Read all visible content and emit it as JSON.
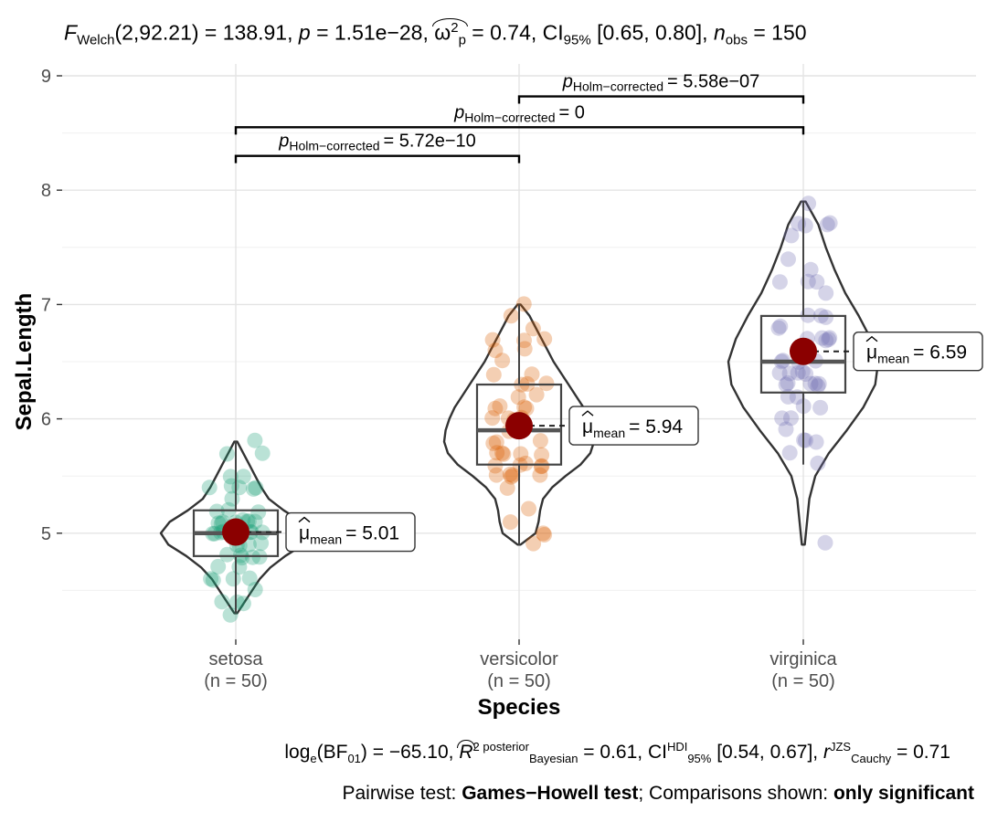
{
  "subtitle": {
    "stat_symbol": "F",
    "stat_sub": "Welch",
    "df": "(2,92.21)",
    "stat_value": "= 138.91,",
    "p_symbol": "p",
    "p_value": "= 1.51e−28,",
    "effect_symbol": "ω",
    "effect_sup": "2",
    "effect_sub": "p",
    "effect_value": "= 0.74,",
    "ci_label": "CI",
    "ci_sub": "95%",
    "ci_value": "[0.65, 0.80],",
    "n_symbol": "n",
    "n_sub": "obs",
    "n_value": "= 150"
  },
  "caption": {
    "bf_prefix": "log",
    "bf_sub": "e",
    "bf_mid": "(BF",
    "bf_mid_sub": "01",
    "bf_value": ") = −65.10,",
    "r2_symbol": "R",
    "r2_sup": "2",
    "r2_sup_label": "posterior",
    "r2_sub": "Bayesian",
    "r2_value": "= 0.61,",
    "ci_label": "CI",
    "ci_sup": "HDI",
    "ci_sub": "95%",
    "ci_value": "[0.54, 0.67],",
    "r_symbol": "r",
    "r_sup": "JZS",
    "r_sub": "Cauchy",
    "r_value": "= 0.71",
    "pairwise_prefix": "Pairwise test: ",
    "pairwise_test": "Games−Howell test",
    "comparisons_prefix": "; Comparisons shown: ",
    "comparisons_value": "only significant"
  },
  "chart_data": {
    "type": "violin-box-scatter",
    "xlabel": "Species",
    "ylabel": "Sepal.Length",
    "ylim": [
      4.05,
      9.05
    ],
    "yticks": [
      5,
      6,
      7,
      8,
      9
    ],
    "grid": true,
    "categories": [
      {
        "name": "setosa",
        "n_label": "(n = 50)",
        "color": "#1b9e77",
        "mean": 5.01,
        "mean_label": "= 5.01",
        "mean_symbol": "μ",
        "mean_sub": "mean",
        "q1": 4.8,
        "median": 5.0,
        "q3": 5.2,
        "whisker_low": 4.3,
        "whisker_high": 5.8,
        "violin": [
          [
            4.3,
            0.02
          ],
          [
            4.4,
            0.12
          ],
          [
            4.5,
            0.22
          ],
          [
            4.6,
            0.32
          ],
          [
            4.7,
            0.46
          ],
          [
            4.8,
            0.66
          ],
          [
            4.9,
            0.9
          ],
          [
            5.0,
            1.0
          ],
          [
            5.1,
            0.88
          ],
          [
            5.2,
            0.64
          ],
          [
            5.3,
            0.44
          ],
          [
            5.4,
            0.34
          ],
          [
            5.5,
            0.26
          ],
          [
            5.6,
            0.18
          ],
          [
            5.7,
            0.1
          ],
          [
            5.8,
            0.02
          ]
        ],
        "points": [
          5.1,
          4.9,
          4.7,
          4.6,
          5.0,
          5.4,
          4.6,
          5.0,
          4.4,
          4.9,
          5.4,
          4.8,
          4.8,
          4.3,
          5.8,
          5.7,
          5.4,
          5.1,
          5.7,
          5.1,
          5.4,
          5.1,
          4.6,
          5.1,
          4.8,
          5.0,
          5.0,
          5.2,
          5.2,
          4.7,
          4.8,
          5.4,
          5.2,
          5.5,
          4.9,
          5.0,
          5.5,
          4.9,
          4.4,
          5.1,
          5.0,
          4.5,
          4.4,
          5.0,
          5.1,
          4.8,
          5.1,
          4.6,
          5.3,
          5.0
        ]
      },
      {
        "name": "versicolor",
        "n_label": "(n = 50)",
        "color": "#d95f02",
        "mean": 5.94,
        "mean_label": "= 5.94",
        "mean_symbol": "μ",
        "mean_sub": "mean",
        "q1": 5.6,
        "median": 5.9,
        "q3": 6.3,
        "whisker_low": 4.9,
        "whisker_high": 7.0,
        "violin": [
          [
            4.9,
            0.02
          ],
          [
            5.0,
            0.22
          ],
          [
            5.1,
            0.26
          ],
          [
            5.2,
            0.28
          ],
          [
            5.3,
            0.32
          ],
          [
            5.4,
            0.44
          ],
          [
            5.5,
            0.62
          ],
          [
            5.6,
            0.82
          ],
          [
            5.7,
            0.95
          ],
          [
            5.8,
            1.0
          ],
          [
            5.9,
            0.98
          ],
          [
            6.0,
            0.93
          ],
          [
            6.1,
            0.86
          ],
          [
            6.2,
            0.76
          ],
          [
            6.3,
            0.66
          ],
          [
            6.4,
            0.56
          ],
          [
            6.5,
            0.46
          ],
          [
            6.6,
            0.38
          ],
          [
            6.7,
            0.3
          ],
          [
            6.8,
            0.22
          ],
          [
            6.9,
            0.14
          ],
          [
            7.0,
            0.02
          ]
        ],
        "points": [
          7.0,
          6.4,
          6.9,
          5.5,
          6.5,
          5.7,
          6.3,
          4.9,
          6.6,
          5.2,
          5.0,
          5.9,
          6.0,
          6.1,
          5.6,
          6.7,
          5.6,
          5.8,
          6.2,
          5.6,
          5.9,
          6.1,
          6.3,
          6.1,
          6.4,
          6.6,
          6.8,
          6.7,
          6.0,
          5.7,
          5.5,
          5.5,
          5.8,
          6.0,
          5.4,
          6.0,
          6.7,
          6.3,
          5.6,
          5.5,
          5.5,
          6.1,
          5.8,
          5.0,
          5.6,
          5.7,
          5.7,
          6.2,
          5.1,
          5.7
        ]
      },
      {
        "name": "virginica",
        "n_label": "(n = 50)",
        "color": "#7570b3",
        "mean": 6.59,
        "mean_label": "= 6.59",
        "mean_symbol": "μ",
        "mean_sub": "mean",
        "q1": 6.23,
        "median": 6.5,
        "q3": 6.9,
        "whisker_low": 5.6,
        "whisker_high": 7.9,
        "violin": [
          [
            4.9,
            0.02
          ],
          [
            5.1,
            0.05
          ],
          [
            5.3,
            0.08
          ],
          [
            5.5,
            0.16
          ],
          [
            5.7,
            0.34
          ],
          [
            5.9,
            0.58
          ],
          [
            6.1,
            0.8
          ],
          [
            6.3,
            0.96
          ],
          [
            6.5,
            1.0
          ],
          [
            6.7,
            0.9
          ],
          [
            6.9,
            0.74
          ],
          [
            7.1,
            0.56
          ],
          [
            7.3,
            0.42
          ],
          [
            7.5,
            0.3
          ],
          [
            7.7,
            0.2
          ],
          [
            7.9,
            0.03
          ]
        ],
        "points": [
          6.3,
          5.8,
          7.1,
          6.3,
          6.5,
          7.6,
          4.9,
          7.3,
          6.7,
          7.2,
          6.5,
          6.4,
          6.8,
          5.7,
          5.8,
          6.4,
          6.5,
          7.7,
          7.7,
          6.0,
          6.9,
          5.6,
          7.7,
          6.3,
          6.7,
          7.2,
          6.2,
          6.1,
          6.4,
          7.2,
          7.4,
          7.9,
          6.4,
          6.3,
          6.1,
          7.7,
          6.3,
          6.4,
          6.0,
          6.9,
          6.7,
          6.9,
          5.8,
          6.8,
          6.7,
          6.7,
          6.3,
          6.5,
          6.2,
          5.9
        ]
      }
    ],
    "comparisons": [
      {
        "from": 0,
        "to": 1,
        "label_symbol": "p",
        "label_sub": "Holm−corrected",
        "label_value": "= 5.72e−10",
        "y": 8.3
      },
      {
        "from": 0,
        "to": 2,
        "label_symbol": "p",
        "label_sub": "Holm−corrected",
        "label_value": "= 0",
        "y": 8.55
      },
      {
        "from": 1,
        "to": 2,
        "label_symbol": "p",
        "label_sub": "Holm−corrected",
        "label_value": "= 5.58e−07",
        "y": 8.82
      }
    ],
    "mean_marker_color": "#8b0000"
  }
}
